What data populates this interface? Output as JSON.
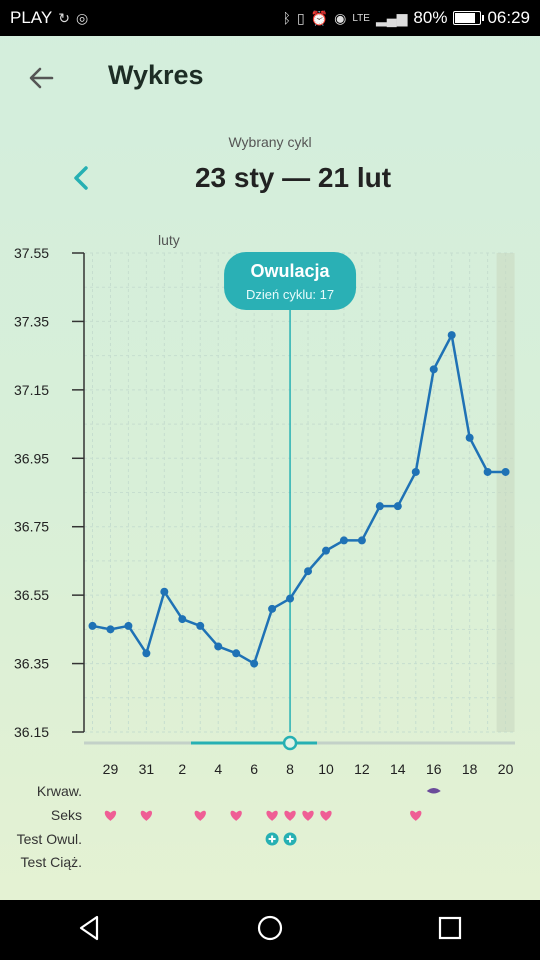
{
  "status_bar": {
    "carrier": "PLAY",
    "battery": "80%",
    "battery_level": 0.8,
    "time": "06:29",
    "network": "LTE"
  },
  "header": {
    "title": "Wykres"
  },
  "cycle": {
    "label": "Wybrany cykl",
    "range": "23 sty — 21 lut"
  },
  "chart_data": {
    "type": "line",
    "month_label": "luty",
    "y_ticks": [
      "37.55",
      "37.35",
      "37.15",
      "36.95",
      "36.75",
      "36.55",
      "36.35",
      "36.15"
    ],
    "ylim": [
      36.15,
      37.55
    ],
    "x_tick_labels": [
      "29",
      "31",
      "2",
      "4",
      "6",
      "8",
      "10",
      "12",
      "14",
      "16",
      "18",
      "20"
    ],
    "x_ticks_day_index": [
      6,
      8,
      10,
      12,
      14,
      16,
      18,
      20,
      22,
      24,
      26,
      28
    ],
    "series": [
      {
        "values": [
          36.46,
          36.45,
          36.46,
          36.38,
          36.56,
          36.48,
          36.46,
          36.4,
          36.38,
          36.35,
          36.51,
          36.54,
          36.62,
          36.68,
          36.71,
          36.71,
          36.81,
          36.81,
          36.91,
          37.21,
          37.31,
          37.01,
          36.91,
          36.91
        ]
      }
    ],
    "start_day_index": 5,
    "ovulation": {
      "title": "Owulacja",
      "subtitle": "Dzień cyklu: 17",
      "day_index": 16
    },
    "shaded_day_index": 28
  },
  "markers": {
    "rows": [
      {
        "label": "Krwaw.",
        "days": [
          24
        ],
        "symbol": "drop",
        "color": "#6b4c9a"
      },
      {
        "label": "Seks",
        "days": [
          6,
          8,
          11,
          13,
          15,
          16,
          17,
          18,
          23
        ],
        "symbol": "heart",
        "color": "#ef5e95"
      },
      {
        "label": "Test Owul.",
        "days": [
          15,
          16
        ],
        "symbol": "plus-circle",
        "color": "#26b0b3"
      },
      {
        "label": "Test Ciąż.",
        "days": [],
        "symbol": "none",
        "color": "#000000"
      }
    ]
  },
  "colors": {
    "line": "#1f72b5",
    "accent": "#26b0b3",
    "axis": "#333333"
  },
  "nav": {
    "back": "back-icon",
    "home": "home-icon",
    "recents": "recents-icon"
  }
}
